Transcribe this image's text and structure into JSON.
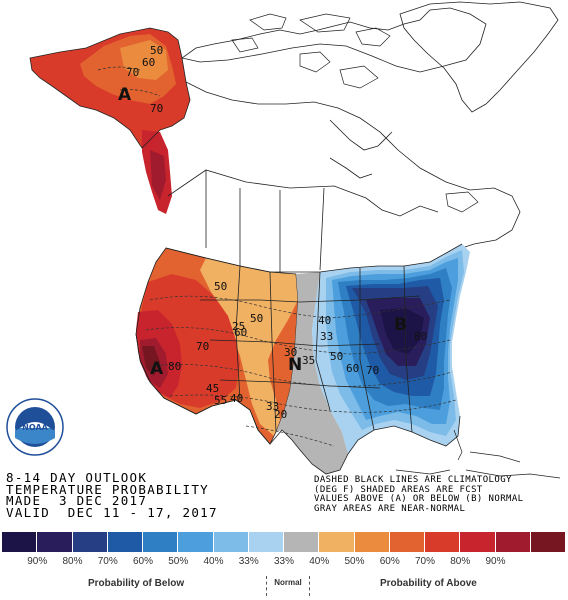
{
  "title_lines": [
    "8-14 DAY OUTLOOK",
    "TEMPERATURE PROBABILITY",
    "MADE  3 DEC 2017",
    "VALID  DEC 11 - 17, 2017"
  ],
  "note_lines": [
    "DASHED BLACK LINES ARE CLIMATOLOGY",
    "(DEG F) SHADED AREAS ARE FCST",
    "VALUES ABOVE (A) OR BELOW (B) NORMAL",
    "GRAY AREAS ARE NEAR-NORMAL"
  ],
  "logo": {
    "text": "NOAA"
  },
  "map": {
    "category_letters": {
      "alaska": "A",
      "west": "A",
      "east": "B",
      "normal": "N"
    },
    "contour_labels": {
      "ak_50": "50",
      "ak_60": "60",
      "ak_70a": "70",
      "ak_70b": "70",
      "w_50": "50",
      "w_60": "60",
      "w_70": "70",
      "w_80": "80",
      "w_40": "40",
      "w_33": "33",
      "w_50b": "50",
      "e_40": "40",
      "e_50": "50",
      "e_60": "60",
      "e_70": "70",
      "e_80": "80",
      "e_33": "33",
      "clim_25": "25",
      "clim_30": "30",
      "clim_35": "35",
      "clim_45": "45",
      "clim_55": "55",
      "clim_20": "20"
    }
  },
  "legend": {
    "colors": [
      "#1c1446",
      "#2a1d5c",
      "#263e83",
      "#1f5aa6",
      "#2f7fc4",
      "#4c9fdc",
      "#7dbbe8",
      "#a9d2f0",
      "#b5b5b5",
      "#f1b163",
      "#ea8b3e",
      "#e2632f",
      "#d93b2b",
      "#c8242e",
      "#a01b2d",
      "#761621"
    ],
    "labels": [
      "90%",
      "80%",
      "70%",
      "60%",
      "50%",
      "40%",
      "33%",
      "33%",
      "40%",
      "50%",
      "60%",
      "70%",
      "80%",
      "90%"
    ],
    "below_label": "Probability of Below",
    "normal_label": "Normal",
    "above_label": "Probability of Above"
  }
}
